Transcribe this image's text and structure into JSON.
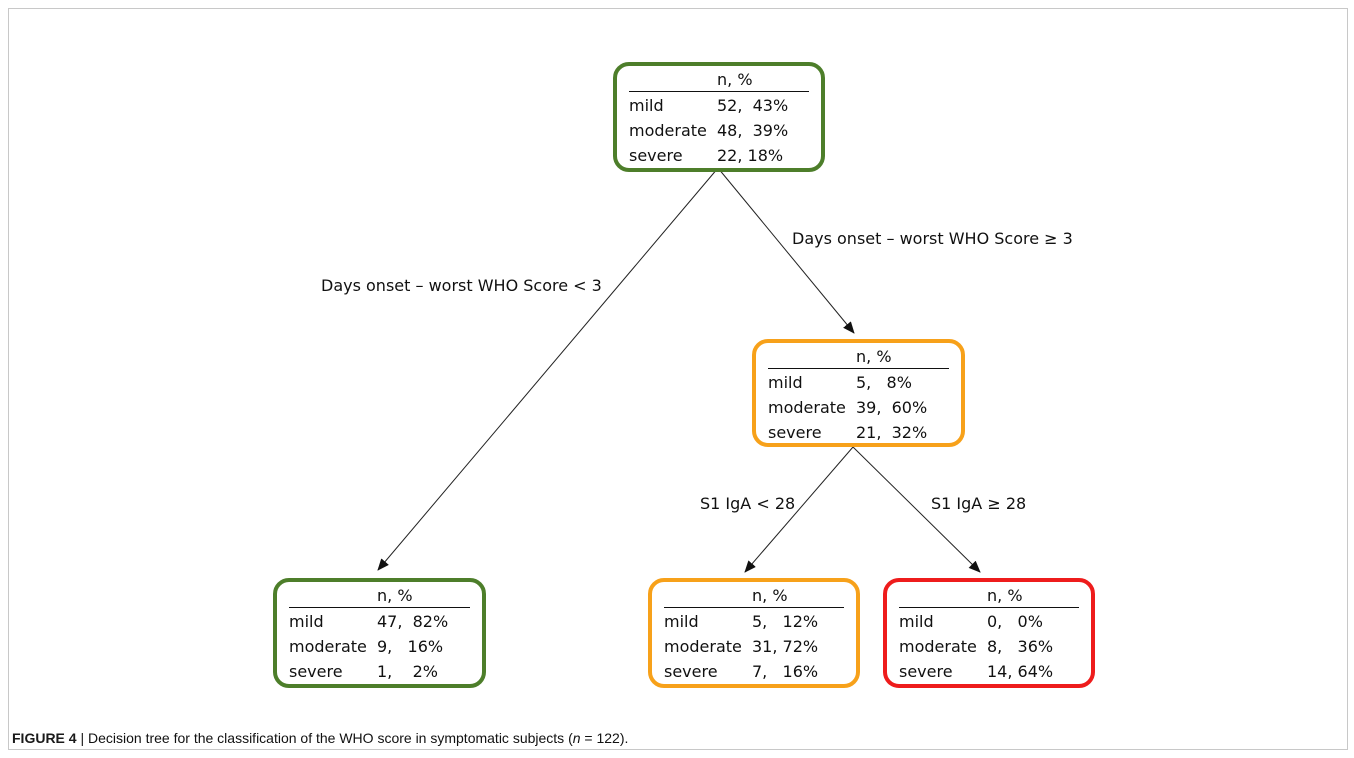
{
  "tree": {
    "header": {
      "label": "",
      "stats": "n,   %"
    },
    "nodes": {
      "root": {
        "color": "#4d7e2a",
        "rows": [
          {
            "label": "mild",
            "value": "52,  43%"
          },
          {
            "label": "moderate",
            "value": "48,  39%"
          },
          {
            "label": "severe",
            "value": "22, 18%"
          }
        ]
      },
      "high_days": {
        "color": "#f7a11a",
        "rows": [
          {
            "label": "mild",
            "value": "5,   8%"
          },
          {
            "label": "moderate",
            "value": "39,  60%"
          },
          {
            "label": "severe",
            "value": "21,  32%"
          }
        ]
      },
      "low_days": {
        "color": "#4d7e2a",
        "rows": [
          {
            "label": "mild",
            "value": "47,  82%"
          },
          {
            "label": "moderate",
            "value": "9,   16%"
          },
          {
            "label": "severe",
            "value": "1,    2%"
          }
        ]
      },
      "low_iga": {
        "color": "#f7a11a",
        "rows": [
          {
            "label": "mild",
            "value": "5,   12%"
          },
          {
            "label": "moderate",
            "value": "31, 72%"
          },
          {
            "label": "severe",
            "value": "7,   16%"
          }
        ]
      },
      "high_iga": {
        "color": "#ee1c1c",
        "rows": [
          {
            "label": "mild",
            "value": "0,   0%"
          },
          {
            "label": "moderate",
            "value": "8,   36%"
          },
          {
            "label": "severe",
            "value": "14, 64%"
          }
        ]
      }
    },
    "edges": {
      "days_ge": "Days onset – worst WHO Score ≥ 3",
      "days_lt": "Days onset – worst WHO Score < 3",
      "iga_lt": "S1 IgA < 28",
      "iga_ge": "S1 IgA ≥ 28"
    }
  },
  "caption": {
    "figure_label": "FIGURE 4",
    "separator": " | ",
    "text_before": "Decision tree for the classification of the WHO score in symptomatic subjects (",
    "n_symbol": "n",
    "text_after": " = 122)."
  }
}
